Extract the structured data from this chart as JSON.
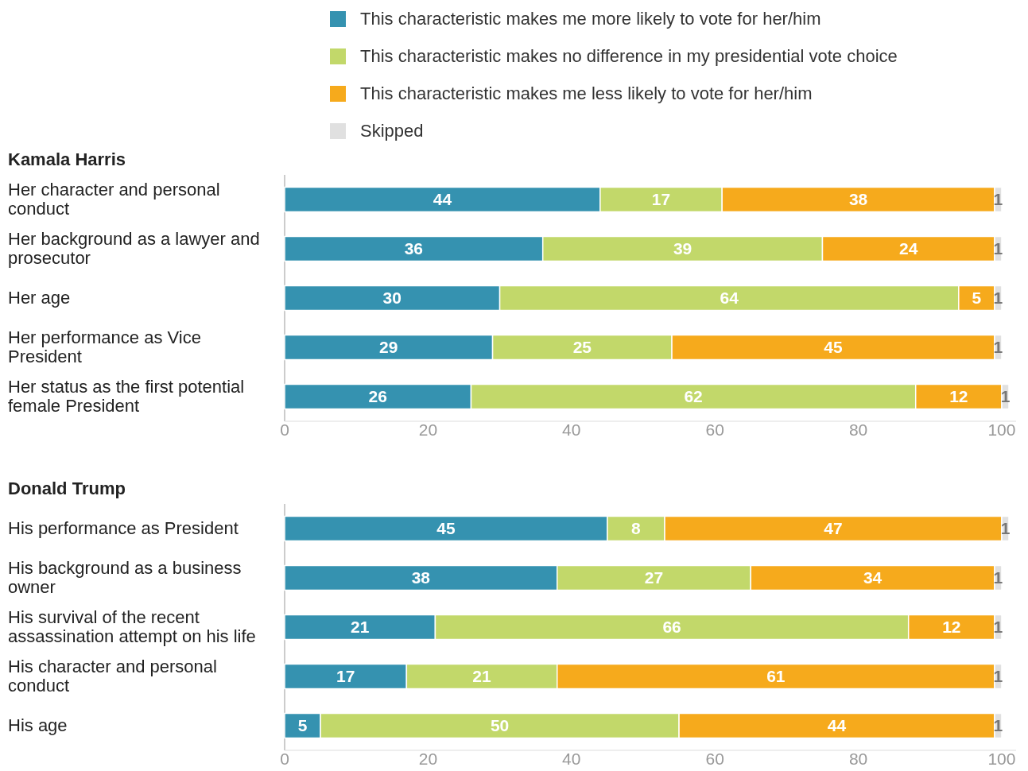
{
  "chart_data": [
    {
      "type": "bar",
      "orientation": "horizontal",
      "stacked": true,
      "data_labels": true,
      "legend": "top",
      "title": "Kamala Harris",
      "categories": [
        "Her character and personal conduct",
        "Her background as a lawyer and prosecutor",
        "Her age",
        "Her performance as Vice President",
        "Her status as the first potential female President"
      ],
      "series": [
        {
          "name": "This characteristic makes me more likely to vote for her/him",
          "color": "#3592b0",
          "values": [
            44,
            36,
            30,
            29,
            26
          ]
        },
        {
          "name": "This characteristic makes no difference in my presidential vote choice",
          "color": "#c2d86a",
          "values": [
            17,
            39,
            64,
            25,
            62
          ]
        },
        {
          "name": "This characteristic makes me less likely to vote for her/him",
          "color": "#f6aa1c",
          "values": [
            38,
            24,
            5,
            45,
            12
          ]
        },
        {
          "name": "Skipped",
          "color": "#e0e0e0",
          "values": [
            1,
            1,
            1,
            1,
            1
          ]
        }
      ],
      "xlim": [
        0,
        102
      ],
      "xticks": [
        0,
        20,
        40,
        60,
        80,
        100
      ],
      "grid": false
    },
    {
      "type": "bar",
      "orientation": "horizontal",
      "stacked": true,
      "data_labels": true,
      "title": "Donald Trump",
      "categories": [
        "His performance as President",
        "His background as a business owner",
        "His survival of the recent assassination attempt on his life",
        "His character and personal conduct",
        "His age"
      ],
      "series": [
        {
          "color": "#3592b0",
          "values": [
            45,
            38,
            21,
            17,
            5
          ]
        },
        {
          "color": "#c2d86a",
          "values": [
            8,
            27,
            66,
            21,
            50
          ]
        },
        {
          "color": "#f6aa1c",
          "values": [
            47,
            34,
            12,
            61,
            44
          ]
        },
        {
          "color": "#e0e0e0",
          "values": [
            1,
            1,
            1,
            1,
            1
          ]
        }
      ],
      "xlim": [
        0,
        102
      ],
      "xticks": [
        0,
        20,
        40,
        60,
        80,
        100
      ],
      "grid": false
    }
  ]
}
